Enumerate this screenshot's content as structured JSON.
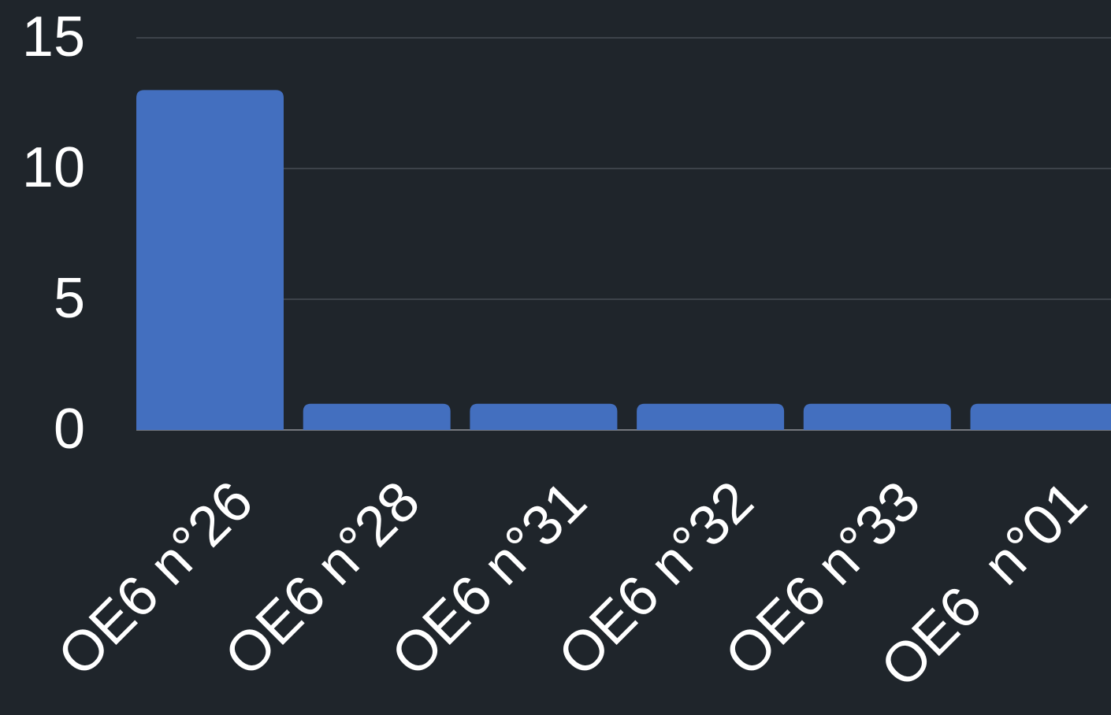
{
  "chart_data": {
    "type": "bar",
    "categories": [
      "OE6 n°26",
      "OE6 n°28",
      "OE6 n°31",
      "OE6 n°32",
      "OE6 n°33",
      "OE6  n°01"
    ],
    "values": [
      13,
      1,
      1,
      1,
      1,
      1
    ],
    "color": "#436fbf",
    "ylim": [
      0,
      15
    ],
    "yticks": [
      0,
      5,
      10,
      15
    ],
    "grid": true
  }
}
